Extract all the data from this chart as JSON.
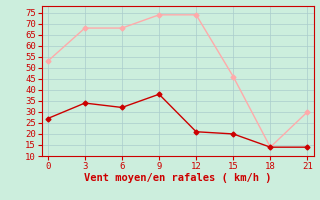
{
  "x": [
    0,
    3,
    6,
    9,
    12,
    15,
    18,
    21
  ],
  "y_moyen": [
    27,
    34,
    32,
    38,
    21,
    20,
    14,
    14
  ],
  "y_rafales": [
    53,
    68,
    68,
    74,
    74,
    46,
    14,
    30
  ],
  "color_moyen": "#cc0000",
  "color_rafales": "#ffaaaa",
  "background_color": "#cceedd",
  "grid_color": "#aacccc",
  "spine_color": "#cc0000",
  "xlabel": "Vent moyen/en rafales ( km/h )",
  "xlabel_color": "#cc0000",
  "ylim": [
    10,
    78
  ],
  "xlim": [
    -0.5,
    21.5
  ],
  "yticks": [
    10,
    15,
    20,
    25,
    30,
    35,
    40,
    45,
    50,
    55,
    60,
    65,
    70,
    75
  ],
  "xticks": [
    0,
    3,
    6,
    9,
    12,
    15,
    18,
    21
  ],
  "marker": "D",
  "markersize": 2.5,
  "linewidth": 1.0,
  "tick_fontsize": 6.5,
  "xlabel_fontsize": 7.5
}
